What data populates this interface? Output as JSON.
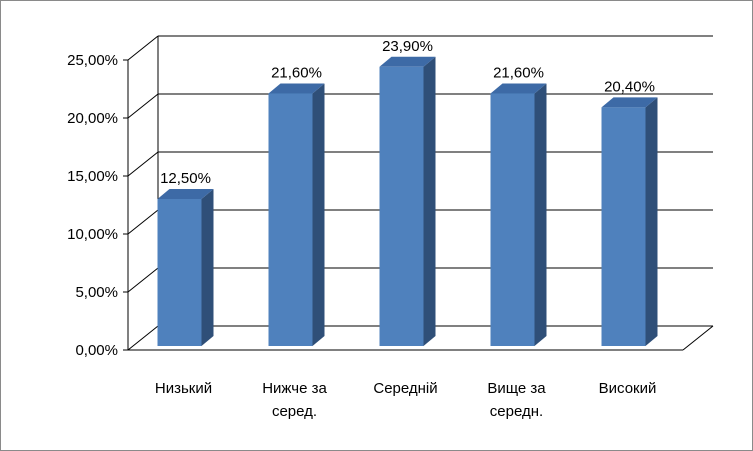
{
  "chart_data": {
    "type": "bar",
    "categories": [
      "Низький",
      "Нижче за серед.",
      "Середній",
      "Вище за середн.",
      "Високий"
    ],
    "category_lines": [
      [
        "Низький"
      ],
      [
        "Нижче за",
        "серед."
      ],
      [
        "Середній"
      ],
      [
        "Вище за",
        "середн."
      ],
      [
        "Високий"
      ]
    ],
    "values": [
      12.5,
      21.6,
      23.9,
      21.6,
      20.4
    ],
    "value_labels": [
      "12,50%",
      "21,60%",
      "23,90%",
      "21,60%",
      "20,40%"
    ],
    "ylim": [
      0,
      25
    ],
    "yticks": [
      0,
      5,
      10,
      15,
      20,
      25
    ],
    "ytick_labels": [
      "0,00%",
      "5,00%",
      "10,00%",
      "15,00%",
      "20,00%",
      "25,00%"
    ],
    "grid": true,
    "bar_color": "#4f81bd",
    "bar_side_color": "#2f4f78",
    "bar_top_color": "#3d6aa6",
    "grid_color": "#000000"
  }
}
